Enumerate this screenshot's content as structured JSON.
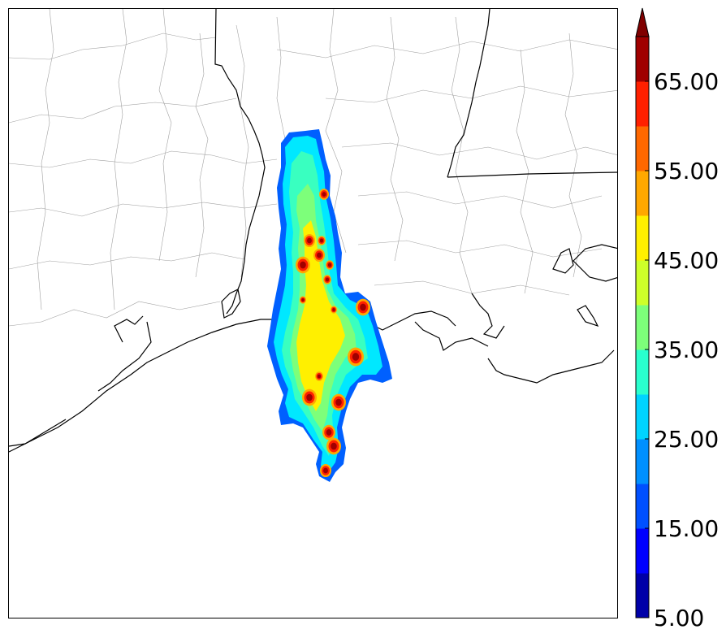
{
  "colorbar": {
    "tick_labels": [
      "5.00",
      "15.00",
      "25.00",
      "35.00",
      "45.00",
      "55.00",
      "65.00"
    ],
    "tick_values": [
      5,
      15,
      25,
      35,
      45,
      55,
      65
    ],
    "min": 5,
    "max": 70,
    "extend": "max",
    "levels": [
      5,
      10,
      15,
      20,
      25,
      30,
      35,
      40,
      45,
      50,
      55,
      60,
      65,
      70
    ],
    "colors": [
      "#0000a8",
      "#0000ff",
      "#0050ff",
      "#0090ff",
      "#00d4ff",
      "#29ffce",
      "#7dff7a",
      "#ceff29",
      "#fff000",
      "#ffa800",
      "#ff6800",
      "#ff2000",
      "#a00000"
    ],
    "extend_color": "#800000"
  },
  "map": {
    "land_color": "#ffffff",
    "coastline_color": "#000000",
    "county_line_color": "#999999",
    "field_colors": {
      "edge": "#0060ff",
      "low": "#00e8ff",
      "mid_low": "#39ffc0",
      "mid": "#7dff7a",
      "mid_high": "#ceff29",
      "high": "#fff000",
      "orange": "#ffa800",
      "red": "#ff2000",
      "dark_red": "#a00000"
    }
  }
}
